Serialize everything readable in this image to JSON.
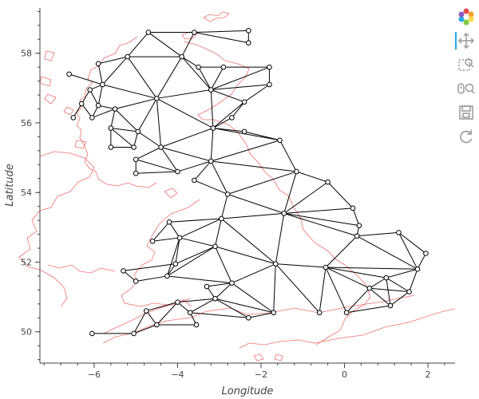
{
  "chart_data": {
    "type": "network",
    "xlabel": "Longitude",
    "ylabel": "Latitude",
    "xlim": [
      -7.3,
      2.65
    ],
    "ylim": [
      49.1,
      59.3
    ],
    "xticks": [
      -6,
      -4,
      -2,
      0,
      2
    ],
    "yticks": [
      50,
      52,
      54,
      56,
      58
    ],
    "grid": false,
    "node_color": "#ffffff",
    "edge_color": "#000000",
    "coastline_color": "#f07070",
    "nodes": [
      [
        -4.7,
        58.6
      ],
      [
        -3.6,
        58.6
      ],
      [
        -2.3,
        58.65
      ],
      [
        -2.3,
        58.3
      ],
      [
        -5.2,
        57.9
      ],
      [
        -3.9,
        57.9
      ],
      [
        -5.9,
        57.7
      ],
      [
        -3.5,
        57.6
      ],
      [
        -2.9,
        57.6
      ],
      [
        -1.8,
        57.6
      ],
      [
        -6.6,
        57.4
      ],
      [
        -5.8,
        57.1
      ],
      [
        -1.8,
        57.1
      ],
      [
        -6.1,
        56.95
      ],
      [
        -3.2,
        56.95
      ],
      [
        -4.5,
        56.7
      ],
      [
        -2.4,
        56.6
      ],
      [
        -6.3,
        56.55
      ],
      [
        -5.9,
        56.5
      ],
      [
        -5.5,
        56.4
      ],
      [
        -2.7,
        56.15
      ],
      [
        -6.5,
        56.15
      ],
      [
        -6.05,
        56.15
      ],
      [
        -5.6,
        55.85
      ],
      [
        -3.15,
        55.85
      ],
      [
        -4.95,
        55.75
      ],
      [
        -2.4,
        55.75
      ],
      [
        -1.55,
        55.5
      ],
      [
        -5.6,
        55.3
      ],
      [
        -5.05,
        55.3
      ],
      [
        -4.4,
        55.3
      ],
      [
        -5,
        54.95
      ],
      [
        -3.2,
        54.9
      ],
      [
        -1.15,
        54.6
      ],
      [
        -4,
        54.6
      ],
      [
        -5,
        54.55
      ],
      [
        -3.6,
        54.35
      ],
      [
        -0.4,
        54.3
      ],
      [
        -2.8,
        53.95
      ],
      [
        -1.45,
        53.4
      ],
      [
        0.2,
        53.55
      ],
      [
        0.35,
        53.05
      ],
      [
        -4.2,
        53.15
      ],
      [
        -2.95,
        53.25
      ],
      [
        -3.95,
        52.7
      ],
      [
        -4.6,
        52.6
      ],
      [
        0.3,
        52.75
      ],
      [
        1.3,
        52.85
      ],
      [
        -3.1,
        52.45
      ],
      [
        1.95,
        52.25
      ],
      [
        -4.05,
        51.95
      ],
      [
        -1.65,
        51.95
      ],
      [
        -0.45,
        51.85
      ],
      [
        -5.3,
        51.75
      ],
      [
        1.75,
        51.8
      ],
      [
        -4.25,
        51.6
      ],
      [
        -5,
        51.45
      ],
      [
        -2.7,
        51.4
      ],
      [
        1,
        51.55
      ],
      [
        -3.3,
        51.3
      ],
      [
        0.6,
        51.25
      ],
      [
        1.55,
        51.15
      ],
      [
        -3.1,
        50.95
      ],
      [
        -4,
        50.85
      ],
      [
        -4.75,
        50.6
      ],
      [
        -3.7,
        50.55
      ],
      [
        -2.3,
        50.4
      ],
      [
        -1.7,
        50.55
      ],
      [
        -0.6,
        50.55
      ],
      [
        0.05,
        50.55
      ],
      [
        1.1,
        50.75
      ],
      [
        -4.5,
        50.2
      ],
      [
        -3.55,
        50.2
      ],
      [
        -6.05,
        49.95
      ],
      [
        -5.05,
        49.95
      ]
    ],
    "edges": [
      [
        0,
        1
      ],
      [
        1,
        2
      ],
      [
        2,
        3
      ],
      [
        3,
        1
      ],
      [
        0,
        4
      ],
      [
        1,
        5
      ],
      [
        0,
        5
      ],
      [
        4,
        5
      ],
      [
        4,
        6
      ],
      [
        4,
        11
      ],
      [
        4,
        15
      ],
      [
        5,
        15
      ],
      [
        5,
        7
      ],
      [
        5,
        14
      ],
      [
        7,
        8
      ],
      [
        8,
        9
      ],
      [
        9,
        12
      ],
      [
        7,
        14
      ],
      [
        8,
        14
      ],
      [
        9,
        14
      ],
      [
        12,
        14
      ],
      [
        12,
        16
      ],
      [
        14,
        16
      ],
      [
        14,
        15
      ],
      [
        10,
        11
      ],
      [
        6,
        11
      ],
      [
        11,
        15
      ],
      [
        11,
        13
      ],
      [
        13,
        17
      ],
      [
        13,
        18
      ],
      [
        11,
        18
      ],
      [
        18,
        19
      ],
      [
        15,
        19
      ],
      [
        17,
        21
      ],
      [
        17,
        22
      ],
      [
        18,
        22
      ],
      [
        19,
        22
      ],
      [
        19,
        23
      ],
      [
        19,
        25
      ],
      [
        15,
        25
      ],
      [
        15,
        24
      ],
      [
        14,
        24
      ],
      [
        16,
        20
      ],
      [
        20,
        24
      ],
      [
        16,
        24
      ],
      [
        24,
        26
      ],
      [
        26,
        27
      ],
      [
        24,
        27
      ],
      [
        23,
        25
      ],
      [
        23,
        28
      ],
      [
        23,
        29
      ],
      [
        28,
        29
      ],
      [
        25,
        29
      ],
      [
        25,
        30
      ],
      [
        15,
        30
      ],
      [
        24,
        30
      ],
      [
        30,
        34
      ],
      [
        30,
        31
      ],
      [
        31,
        34
      ],
      [
        31,
        35
      ],
      [
        34,
        35
      ],
      [
        30,
        32
      ],
      [
        24,
        32
      ],
      [
        27,
        32
      ],
      [
        32,
        34
      ],
      [
        32,
        33
      ],
      [
        27,
        33
      ],
      [
        32,
        36
      ],
      [
        36,
        38
      ],
      [
        32,
        38
      ],
      [
        33,
        38
      ],
      [
        33,
        37
      ],
      [
        33,
        39
      ],
      [
        38,
        39
      ],
      [
        37,
        39
      ],
      [
        37,
        40
      ],
      [
        39,
        40
      ],
      [
        38,
        43
      ],
      [
        39,
        43
      ],
      [
        40,
        41
      ],
      [
        39,
        41
      ],
      [
        41,
        46
      ],
      [
        39,
        46
      ],
      [
        42,
        43
      ],
      [
        42,
        44
      ],
      [
        43,
        44
      ],
      [
        42,
        45
      ],
      [
        44,
        45
      ],
      [
        43,
        48
      ],
      [
        44,
        48
      ],
      [
        39,
        51
      ],
      [
        43,
        51
      ],
      [
        48,
        51
      ],
      [
        44,
        50
      ],
      [
        48,
        50
      ],
      [
        50,
        53
      ],
      [
        50,
        55
      ],
      [
        53,
        56
      ],
      [
        55,
        56
      ],
      [
        44,
        55
      ],
      [
        48,
        55
      ],
      [
        48,
        57
      ],
      [
        55,
        57
      ],
      [
        57,
        59
      ],
      [
        51,
        57
      ],
      [
        51,
        52
      ],
      [
        46,
        52
      ],
      [
        46,
        47
      ],
      [
        47,
        49
      ],
      [
        47,
        54
      ],
      [
        49,
        54
      ],
      [
        46,
        54
      ],
      [
        52,
        54
      ],
      [
        52,
        58
      ],
      [
        54,
        58
      ],
      [
        54,
        61
      ],
      [
        58,
        61
      ],
      [
        58,
        60
      ],
      [
        52,
        60
      ],
      [
        60,
        61
      ],
      [
        60,
        70
      ],
      [
        61,
        70
      ],
      [
        57,
        62
      ],
      [
        59,
        62
      ],
      [
        62,
        63
      ],
      [
        63,
        64
      ],
      [
        62,
        65
      ],
      [
        63,
        65
      ],
      [
        51,
        67
      ],
      [
        57,
        67
      ],
      [
        62,
        67
      ],
      [
        62,
        66
      ],
      [
        66,
        67
      ],
      [
        51,
        68
      ],
      [
        52,
        68
      ],
      [
        52,
        69
      ],
      [
        60,
        69
      ],
      [
        69,
        70
      ],
      [
        58,
        70
      ],
      [
        64,
        71
      ],
      [
        63,
        71
      ],
      [
        71,
        72
      ],
      [
        65,
        72
      ],
      [
        65,
        66
      ],
      [
        64,
        74
      ],
      [
        73,
        74
      ],
      [
        71,
        74
      ]
    ]
  },
  "toolbar": {
    "tools": [
      "bokeh-logo-icon",
      "pan-icon",
      "box-zoom-icon",
      "wheel-zoom-icon",
      "save-icon",
      "reset-icon"
    ]
  }
}
